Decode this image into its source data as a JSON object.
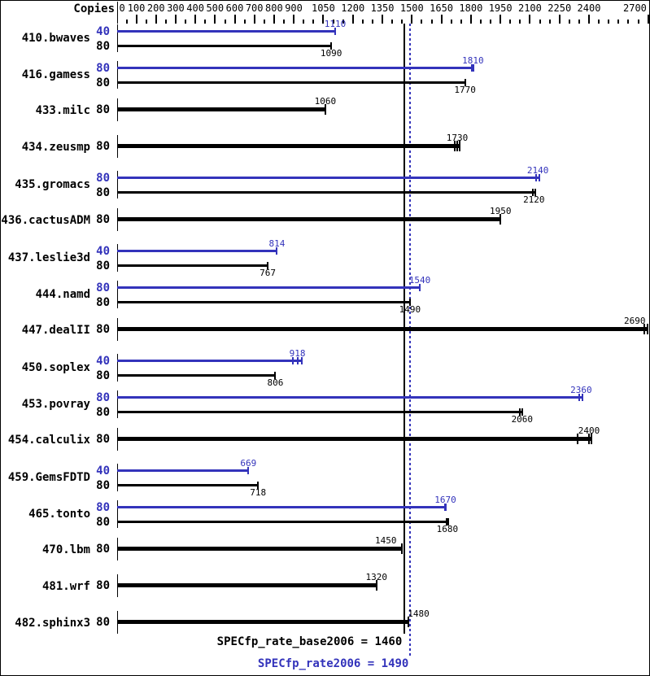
{
  "chart_data": {
    "type": "bar",
    "orientation": "horizontal",
    "copies_header": "Copies",
    "colors": {
      "peak": "#3333bb",
      "base": "#000000",
      "background": "#ffffff"
    },
    "axis": {
      "min": 0,
      "max": 2700,
      "minor_tick_step": 50,
      "labeled_values": [
        0,
        100,
        200,
        300,
        400,
        500,
        600,
        700,
        800,
        900,
        1050,
        1200,
        1350,
        1500,
        1650,
        1800,
        1950,
        2100,
        2250,
        2400,
        2700
      ]
    },
    "benchmarks": [
      {
        "name": "410.bwaves",
        "bars": [
          {
            "copies": "40",
            "series": "peak",
            "value": 1110,
            "label": "1110",
            "ticks": [
              1110
            ]
          },
          {
            "copies": "80",
            "series": "base",
            "value": 1090,
            "label": "1090",
            "ticks": [
              1090
            ]
          }
        ]
      },
      {
        "name": "416.gamess",
        "bars": [
          {
            "copies": "80",
            "series": "peak",
            "value": 1810,
            "label": "1810",
            "ticks": [
              1806,
              1813
            ]
          },
          {
            "copies": "80",
            "series": "base",
            "value": 1770,
            "label": "1770",
            "ticks": [
              1770
            ]
          }
        ]
      },
      {
        "name": "433.milc",
        "bars": [
          {
            "copies": "80",
            "series": "base",
            "value": 1060,
            "label": "1060",
            "ticks": [
              1060
            ]
          }
        ]
      },
      {
        "name": "434.zeusmp",
        "bars": [
          {
            "copies": "80",
            "series": "base",
            "value": 1730,
            "label": "1730",
            "ticks": [
              1718,
              1730,
              1741
            ]
          }
        ]
      },
      {
        "name": "435.gromacs",
        "bars": [
          {
            "copies": "80",
            "series": "peak",
            "value": 2140,
            "label": "2140",
            "ticks": [
              2133,
              2147
            ]
          },
          {
            "copies": "80",
            "series": "base",
            "value": 2120,
            "label": "2120",
            "ticks": [
              2113,
              2126
            ]
          }
        ]
      },
      {
        "name": "436.cactusADM",
        "bars": [
          {
            "copies": "80",
            "series": "base",
            "value": 1950,
            "label": "1950",
            "ticks": [
              1950
            ]
          }
        ]
      },
      {
        "name": "437.leslie3d",
        "bars": [
          {
            "copies": "40",
            "series": "peak",
            "value": 814,
            "label": "814",
            "ticks": [
              814
            ]
          },
          {
            "copies": "80",
            "series": "base",
            "value": 767,
            "label": "767",
            "ticks": [
              767
            ]
          }
        ]
      },
      {
        "name": "444.namd",
        "bars": [
          {
            "copies": "80",
            "series": "peak",
            "value": 1540,
            "label": "1540",
            "ticks": [
              1540
            ]
          },
          {
            "copies": "80",
            "series": "base",
            "value": 1490,
            "label": "1490",
            "ticks": [
              1490
            ]
          }
        ]
      },
      {
        "name": "447.dealII",
        "bars": [
          {
            "copies": "80",
            "series": "base",
            "value": 2690,
            "label": "2690",
            "ticks": [
              2682,
              2697
            ],
            "label_dx": -14
          }
        ]
      },
      {
        "name": "450.soplex",
        "bars": [
          {
            "copies": "40",
            "series": "peak",
            "value": 918,
            "label": "918",
            "ticks": [
              893,
              918,
              942
            ]
          },
          {
            "copies": "80",
            "series": "base",
            "value": 806,
            "label": "806",
            "ticks": [
              806
            ]
          }
        ]
      },
      {
        "name": "453.povray",
        "bars": [
          {
            "copies": "80",
            "series": "peak",
            "value": 2360,
            "label": "2360",
            "ticks": [
              2351,
              2367
            ]
          },
          {
            "copies": "80",
            "series": "base",
            "value": 2060,
            "label": "2060",
            "ticks": [
              2047,
              2062
            ]
          }
        ]
      },
      {
        "name": "454.calculix",
        "bars": [
          {
            "copies": "80",
            "series": "base",
            "value": 2400,
            "label": "2400",
            "ticks": [
              2340,
              2398,
              2413
            ]
          }
        ]
      },
      {
        "name": "459.GemsFDTD",
        "bars": [
          {
            "copies": "40",
            "series": "peak",
            "value": 669,
            "label": "669",
            "ticks": [
              669
            ]
          },
          {
            "copies": "80",
            "series": "base",
            "value": 718,
            "label": "718",
            "ticks": [
              718
            ]
          }
        ]
      },
      {
        "name": "465.tonto",
        "bars": [
          {
            "copies": "80",
            "series": "peak",
            "value": 1670,
            "label": "1670",
            "ticks": [
              1666,
              1673
            ]
          },
          {
            "copies": "80",
            "series": "base",
            "value": 1680,
            "label": "1680",
            "ticks": [
              1677,
              1684
            ]
          }
        ]
      },
      {
        "name": "470.lbm",
        "bars": [
          {
            "copies": "80",
            "series": "base",
            "value": 1450,
            "label": "1450",
            "ticks": [
              1450
            ],
            "label_dx": -20
          }
        ]
      },
      {
        "name": "481.wrf",
        "bars": [
          {
            "copies": "80",
            "series": "base",
            "value": 1320,
            "label": "1320",
            "ticks": [
              1320
            ]
          }
        ]
      },
      {
        "name": "482.sphinx3",
        "bars": [
          {
            "copies": "80",
            "series": "base",
            "value": 1480,
            "label": "1480",
            "ticks": [
              1480
            ],
            "label_dx": 13
          }
        ]
      }
    ],
    "reference_lines": [
      {
        "series": "base",
        "value": 1460,
        "style": "solid",
        "label": "SPECfp_rate_base2006 = 1460"
      },
      {
        "series": "peak",
        "value": 1490,
        "style": "dotted",
        "label": "SPECfp_rate2006 = 1490"
      }
    ]
  }
}
